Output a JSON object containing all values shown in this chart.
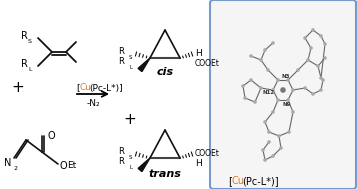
{
  "fig_width": 3.57,
  "fig_height": 1.89,
  "dpi": 100,
  "bg_color": "#ffffff",
  "box_color": "#7799cc",
  "orange_color": "#e07820",
  "text_color": "#000000",
  "cis_label": "cis",
  "trans_label": "trans",
  "catalyst_text1": "[",
  "catalyst_cu": "Cu",
  "catalyst_text2": "(Pc-L*)]",
  "minus_n2": "-N₂",
  "bottom_label1": "[",
  "bottom_cu": "Cu",
  "bottom_label2": "(Pc-L*)]"
}
